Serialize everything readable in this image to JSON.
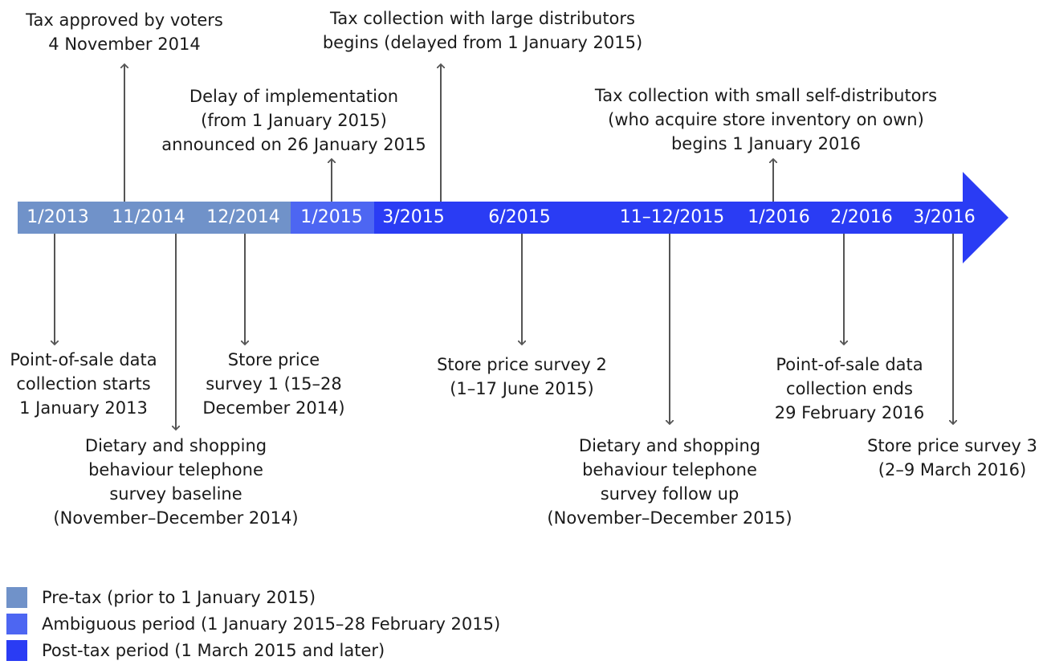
{
  "colors": {
    "pretax": "#7092c9",
    "ambiguous": "#4d66f2",
    "posttax": "#2a3cf4",
    "connector": "#555555"
  },
  "timeline": {
    "ticks": [
      "1/2013",
      "11/2014",
      "12/2014",
      "1/2015",
      "3/2015",
      "6/2015",
      "11–12/2015",
      "1/2016",
      "2/2016",
      "3/2016"
    ]
  },
  "events_above": [
    {
      "text": "Tax approved by voters\n4 November 2014"
    },
    {
      "text": "Delay of implementation\n(from 1 January 2015)\nannounced on 26 January 2015"
    },
    {
      "text": "Tax collection with large distributors\nbegins (delayed from 1 January 2015)"
    },
    {
      "text": "Tax collection with small self-distributors\n(who acquire store inventory on own)\nbegins 1 January 2016"
    }
  ],
  "events_below": [
    {
      "text": "Point-of-sale data\ncollection starts\n1 January 2013"
    },
    {
      "text": "Dietary and shopping\nbehaviour telephone\nsurvey baseline\n(November–December 2014)"
    },
    {
      "text": "Store price\nsurvey 1 (15–28\nDecember 2014)"
    },
    {
      "text": "Store price survey 2\n(1–17 June 2015)"
    },
    {
      "text": "Dietary and shopping\nbehaviour telephone\nsurvey follow up\n(November–December 2015)"
    },
    {
      "text": "Point-of-sale data\ncollection ends\n29 February 2016"
    },
    {
      "text": "Store price survey 3\n(2–9 March 2016)"
    }
  ],
  "legend": [
    {
      "label": "Pre-tax (prior to 1 January 2015)",
      "color": "#7092c9"
    },
    {
      "label": "Ambiguous period (1 January 2015–28 February 2015)",
      "color": "#4d66f2"
    },
    {
      "label": "Post-tax period (1 March 2015 and later)",
      "color": "#2a3cf4"
    }
  ]
}
